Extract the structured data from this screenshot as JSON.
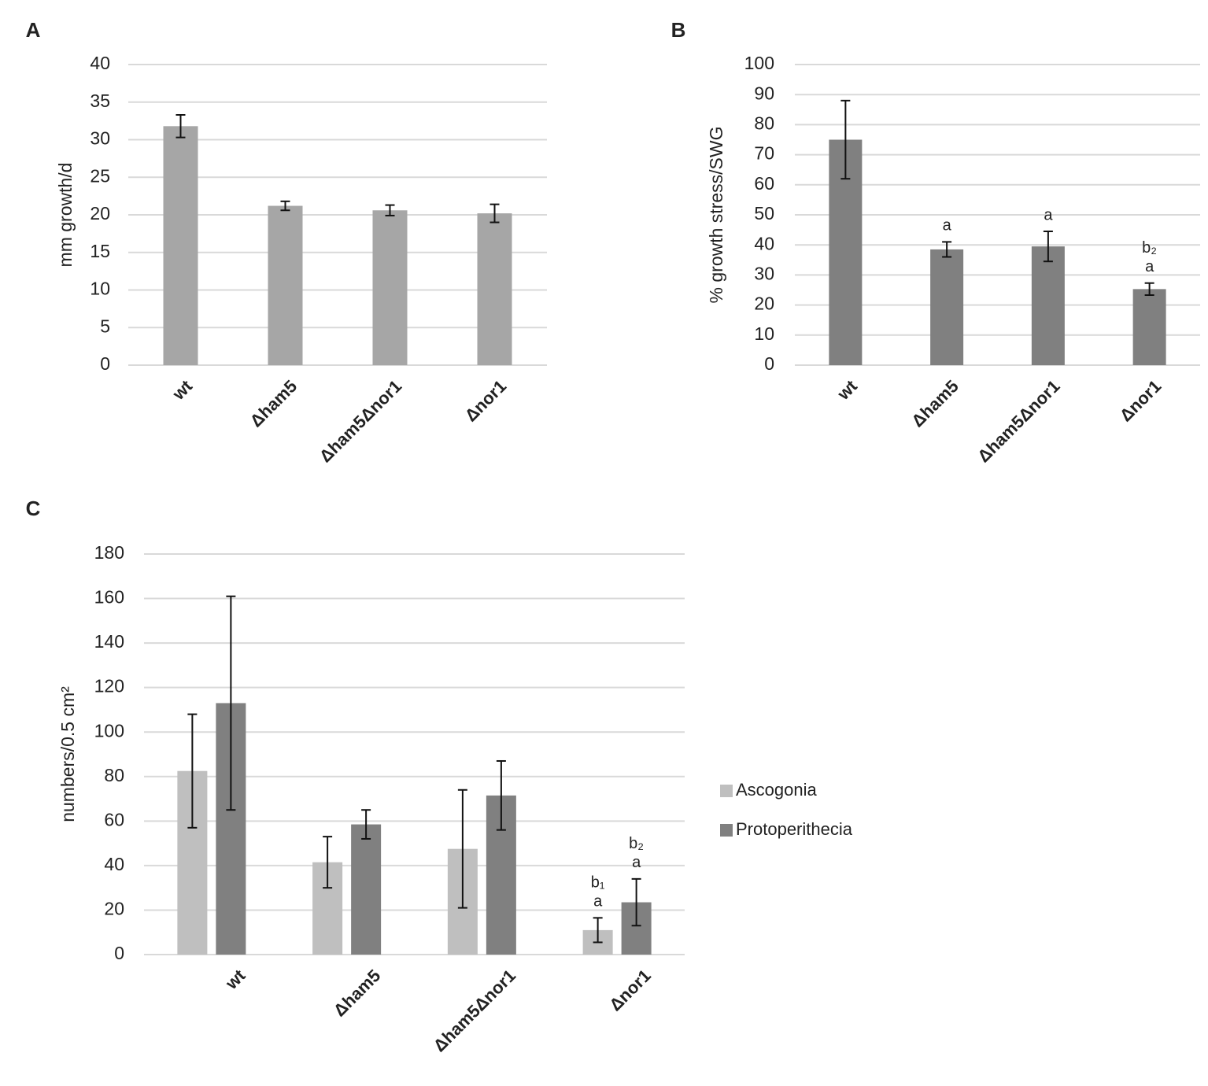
{
  "chart_data": [
    {
      "type": "bar",
      "panel": "A",
      "ylabel": "mm growth/d",
      "categories": [
        "wt",
        "Δham5",
        "Δham5Δnor1",
        "Δnor1"
      ],
      "values": [
        31.8,
        21.2,
        20.6,
        20.2
      ],
      "errors": [
        1.5,
        0.6,
        0.7,
        1.2
      ],
      "color": "#a6a6a6",
      "ylim": [
        0,
        40
      ],
      "yticks": [
        0,
        5,
        10,
        15,
        20,
        25,
        30,
        35,
        40
      ],
      "grid": true
    },
    {
      "type": "bar",
      "panel": "B",
      "ylabel": "% growth stress/SWG",
      "categories": [
        "wt",
        "Δham5",
        "Δham5Δnor1",
        "Δnor1"
      ],
      "values": [
        75,
        38.5,
        39.5,
        25.3
      ],
      "errors": [
        13,
        2.5,
        5,
        2
      ],
      "annotations": [
        [],
        [
          "a"
        ],
        [
          "a"
        ],
        [
          "b₂",
          "a"
        ]
      ],
      "color": "#808080",
      "ylim": [
        0,
        100
      ],
      "yticks": [
        0,
        10,
        20,
        30,
        40,
        50,
        60,
        70,
        80,
        90,
        100
      ],
      "grid": true
    },
    {
      "type": "bar",
      "panel": "C",
      "ylabel": "numbers/0.5 cm²",
      "categories": [
        "wt",
        "Δham5",
        "Δham5Δnor1",
        "Δnor1"
      ],
      "series": [
        {
          "name": "Ascogonia",
          "color": "#bfbfbf",
          "values": [
            82.5,
            41.5,
            47.5,
            11
          ],
          "errors": [
            25.5,
            11.5,
            26.5,
            5.5
          ],
          "annotations": [
            [],
            [],
            [],
            [
              "b₁",
              "a"
            ]
          ]
        },
        {
          "name": "Protoperithecia",
          "color": "#808080",
          "values": [
            113,
            58.5,
            71.5,
            23.5
          ],
          "errors": [
            48,
            6.5,
            15.5,
            10.5
          ],
          "annotations": [
            [],
            [],
            [],
            [
              "b₂",
              "a"
            ]
          ]
        }
      ],
      "ylim": [
        0,
        180
      ],
      "yticks": [
        0,
        20,
        40,
        60,
        80,
        100,
        120,
        140,
        160,
        180
      ],
      "grid": true,
      "legend": "right"
    }
  ]
}
